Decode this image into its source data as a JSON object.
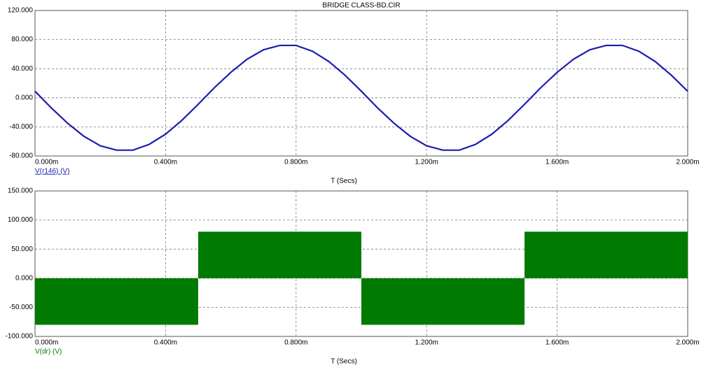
{
  "chart_data": [
    {
      "type": "line",
      "title": "BRIDGE CLASS-BD.CIR",
      "xlabel": "T (Secs)",
      "x": [
        0,
        0.05,
        0.1,
        0.15,
        0.2,
        0.25,
        0.3,
        0.35,
        0.4,
        0.45,
        0.5,
        0.55,
        0.6,
        0.65,
        0.7,
        0.75,
        0.8,
        0.85,
        0.9,
        0.95,
        1.0,
        1.05,
        1.1,
        1.15,
        1.2,
        1.25,
        1.3,
        1.35,
        1.4,
        1.45,
        1.5,
        1.55,
        1.6,
        1.65,
        1.7,
        1.75,
        1.8,
        1.85,
        1.9,
        1.95,
        2.0
      ],
      "series": [
        {
          "name": "V(r146) (V)",
          "color": "#1c1cb0",
          "values": [
            9,
            -14,
            -35,
            -53,
            -66,
            -72,
            -72,
            -64,
            -50,
            -31,
            -9,
            14,
            35,
            53,
            66,
            72,
            72,
            64,
            50,
            31,
            9,
            -14,
            -35,
            -53,
            -66,
            -72,
            -72,
            -64,
            -50,
            -31,
            -9,
            14,
            35,
            53,
            66,
            72,
            72,
            64,
            50,
            31,
            9
          ]
        }
      ],
      "xlim": [
        0,
        2.0
      ],
      "xticks": [
        {
          "value": 0,
          "label": "0.000m"
        },
        {
          "value": 0.4,
          "label": "0.400m"
        },
        {
          "value": 0.8,
          "label": "0.800m"
        },
        {
          "value": 1.2,
          "label": "1.200m"
        },
        {
          "value": 1.6,
          "label": "1.600m"
        },
        {
          "value": 2.0,
          "label": "2.000m"
        }
      ],
      "ylim": [
        -80,
        120
      ],
      "yticks": [
        {
          "value": 120,
          "label": "120.000"
        },
        {
          "value": 80,
          "label": "80.000"
        },
        {
          "value": 40,
          "label": "40.000"
        },
        {
          "value": 0,
          "label": "0.000"
        },
        {
          "value": -40,
          "label": "-40.000"
        },
        {
          "value": -80,
          "label": "-80.000"
        }
      ],
      "grid": true
    },
    {
      "type": "band",
      "xlabel": "T (Secs)",
      "bins": [
        0,
        0.5,
        1.0,
        1.5,
        2.0
      ],
      "series": [
        {
          "name": "V(dr) (V)",
          "color": "#007a00",
          "low": [
            -80,
            0,
            -80,
            0
          ],
          "high": [
            0,
            80,
            0,
            80
          ]
        }
      ],
      "xlim": [
        0,
        2.0
      ],
      "xticks": [
        {
          "value": 0,
          "label": "0.000m"
        },
        {
          "value": 0.4,
          "label": "0.400m"
        },
        {
          "value": 0.8,
          "label": "0.800m"
        },
        {
          "value": 1.2,
          "label": "1.200m"
        },
        {
          "value": 1.6,
          "label": "1.600m"
        },
        {
          "value": 2.0,
          "label": "2.000m"
        }
      ],
      "ylim": [
        -100,
        150
      ],
      "yticks": [
        {
          "value": 150,
          "label": "150.000"
        },
        {
          "value": 100,
          "label": "100.000"
        },
        {
          "value": 50,
          "label": "50.000"
        },
        {
          "value": 0,
          "label": "0.000"
        },
        {
          "value": -50,
          "label": "-50.000"
        },
        {
          "value": -100,
          "label": "-100.000"
        }
      ],
      "grid": true
    }
  ]
}
